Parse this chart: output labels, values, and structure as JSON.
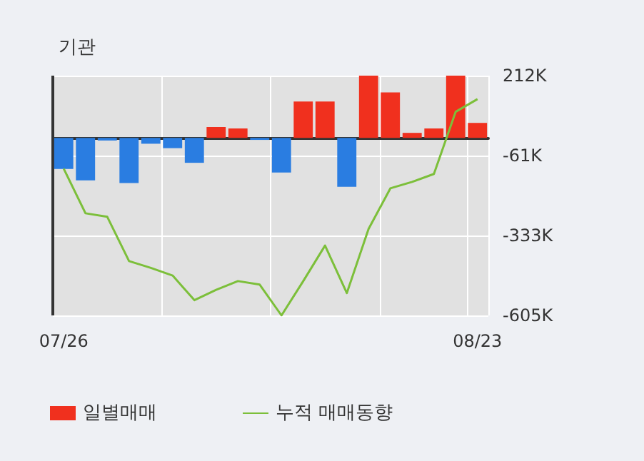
{
  "chart_data": {
    "type": "bar",
    "title": "기관",
    "categories": [
      "07/26",
      null,
      null,
      null,
      null,
      null,
      null,
      null,
      null,
      null,
      null,
      null,
      null,
      null,
      null,
      null,
      null,
      null,
      null,
      "08/23"
    ],
    "series": [
      {
        "name": "일별매매",
        "colors": [
          "#2a7de1",
          "#2a7de1",
          "#2a7de1",
          "#2a7de1",
          "#2a7de1",
          "#2a7de1",
          "#2a7de1",
          "#f0301e",
          "#f0301e",
          "#2a7de1",
          "#2a7de1",
          "#f0301e",
          "#f0301e",
          "#2a7de1",
          "#f0301e",
          "#f0301e",
          "#f0301e",
          "#f0301e",
          "#f0301e",
          "#f0301e"
        ],
        "values": [
          -106000,
          -145000,
          -9000,
          -154000,
          -20000,
          -35000,
          -85000,
          37000,
          32000,
          -7000,
          -118000,
          124000,
          124000,
          -167000,
          212000,
          155000,
          17000,
          32000,
          212000,
          51000
        ]
      },
      {
        "name": "누적 매매동향",
        "type": "line",
        "color": "#7cbf3a",
        "values": [
          -105000,
          -257000,
          -269000,
          -420000,
          -443000,
          -469000,
          -553000,
          -518000,
          -488000,
          -500000,
          -605000,
          -488000,
          -367000,
          -529000,
          -310000,
          -172000,
          -150000,
          -123000,
          89000,
          132000
        ]
      }
    ],
    "ylim": [
      -605000,
      212000
    ],
    "yticks": [
      {
        "value": 212000,
        "label": "212K"
      },
      {
        "value": -61000,
        "label": "-61K"
      },
      {
        "value": -333000,
        "label": "-333K"
      },
      {
        "value": -605000,
        "label": "-605K"
      }
    ],
    "grid": true,
    "legend": "bottom left",
    "marker": "none",
    "line_style": "solid"
  }
}
